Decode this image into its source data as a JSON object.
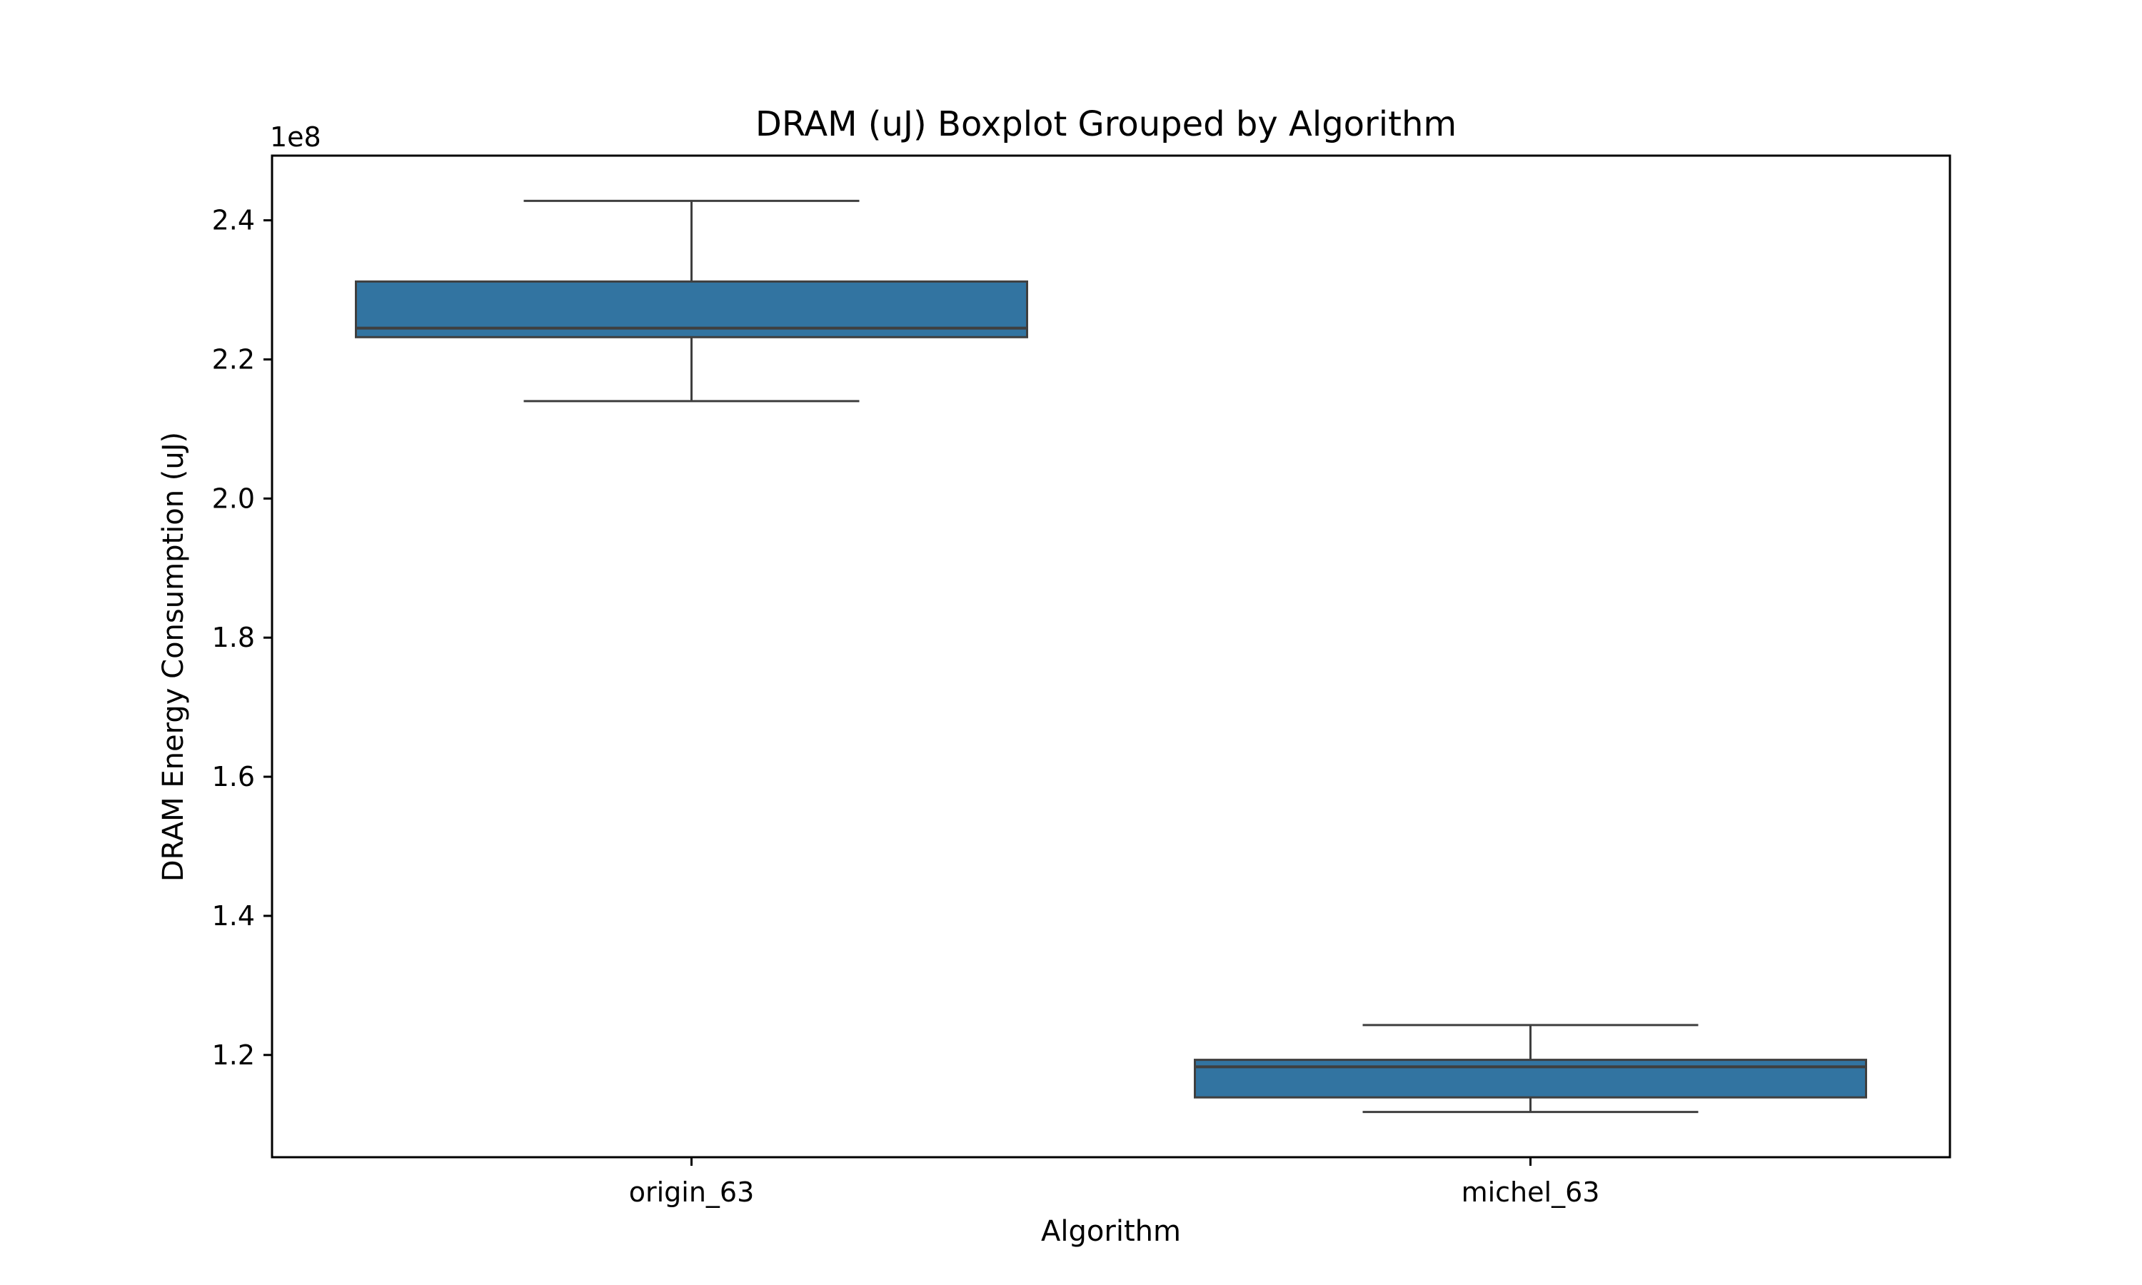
{
  "chart_data": {
    "type": "box",
    "title": "DRAM (uJ) Boxplot Grouped by Algorithm",
    "xlabel": "Algorithm",
    "ylabel": "DRAM Energy Consumption (uJ)",
    "y_offset_label": "1e8",
    "ylim": [
      1.053,
      2.493
    ],
    "yticks": [
      1.2,
      1.4,
      1.6,
      1.8,
      2.0,
      2.2,
      2.4
    ],
    "ytick_labels": [
      "1.2",
      "1.4",
      "1.6",
      "1.8",
      "2.0",
      "2.2",
      "2.4"
    ],
    "categories": [
      "origin_63",
      "michel_63"
    ],
    "boxes": [
      {
        "category": "origin_63",
        "whisker_low": 2.14,
        "q1": 2.232,
        "median": 2.245,
        "q3": 2.312,
        "whisker_high": 2.428
      },
      {
        "category": "michel_63",
        "whisker_low": 1.118,
        "q1": 1.139,
        "median": 1.183,
        "q3": 1.193,
        "whisker_high": 1.243
      }
    ],
    "box_color": "#3274a1",
    "edge_color": "#3f3f3f",
    "grid": false,
    "legend": "none"
  }
}
